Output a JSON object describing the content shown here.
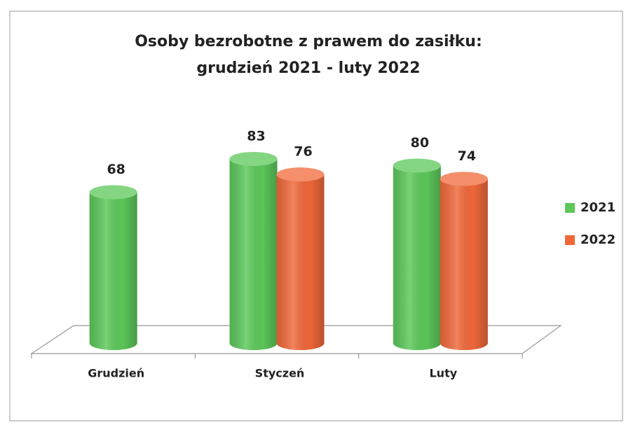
{
  "chart_data": {
    "type": "cylinder",
    "title": [
      "Osoby bezrobotne z prawem do zasiłku:",
      "grudzień 2021 - luty 2022"
    ],
    "categories": [
      "Grudzień",
      "Styczeń",
      "Luty"
    ],
    "series": [
      {
        "name": "2021",
        "color": "#5cc85a",
        "values": [
          68,
          83,
          80
        ]
      },
      {
        "name": "2022",
        "color": "#f0683a",
        "values": [
          null,
          76,
          74
        ]
      }
    ],
    "legend": "right"
  }
}
